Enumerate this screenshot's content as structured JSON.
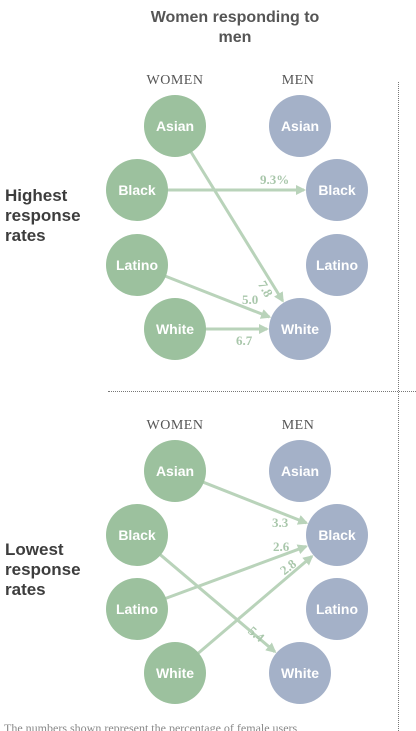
{
  "title": "Women responding to men",
  "colors": {
    "women": "#9cc19e",
    "men": "#a4b1c8",
    "arrow": "#b9d3ba",
    "value_text": "#a9c7ab"
  },
  "panels": [
    {
      "label": "Highest response rates",
      "women_label": "WOMEN",
      "men_label": "MEN",
      "women": [
        "Asian",
        "Black",
        "Latino",
        "White"
      ],
      "men": [
        "Asian",
        "Black",
        "Latino",
        "White"
      ],
      "links": [
        {
          "from": "Black",
          "to": "Black",
          "value": "9.3%"
        },
        {
          "from": "Asian",
          "to": "White",
          "value": "7.8"
        },
        {
          "from": "Latino",
          "to": "White",
          "value": "5.0"
        },
        {
          "from": "White",
          "to": "White",
          "value": "6.7"
        }
      ]
    },
    {
      "label": "Lowest response rates",
      "women_label": "WOMEN",
      "men_label": "MEN",
      "women": [
        "Asian",
        "Black",
        "Latino",
        "White"
      ],
      "men": [
        "Asian",
        "Black",
        "Latino",
        "White"
      ],
      "links": [
        {
          "from": "Asian",
          "to": "Black",
          "value": "3.3"
        },
        {
          "from": "Latino",
          "to": "Black",
          "value": "2.6"
        },
        {
          "from": "White",
          "to": "Black",
          "value": "2.8"
        },
        {
          "from": "Black",
          "to": "White",
          "value": "5.4"
        }
      ]
    }
  ],
  "footnote": "The numbers shown represent the percentage of female users"
}
